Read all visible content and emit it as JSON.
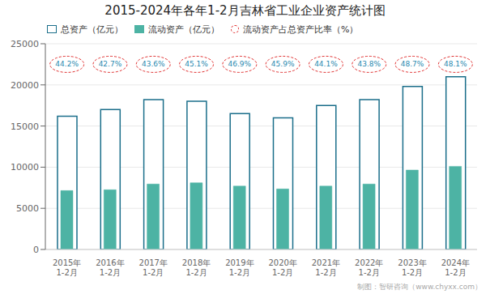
{
  "chart_data": {
    "type": "bar",
    "title": "2015-2024年各年1-2月吉林省工业企业资产统计图",
    "categories": [
      "2015年\n1-2月",
      "2016年\n1-2月",
      "2017年\n1-2月",
      "2018年\n1-2月",
      "2019年\n1-2月",
      "2020年\n1-2月",
      "2021年\n1-2月",
      "2022年\n1-2月",
      "2023年\n1-2月",
      "2024年\n1-2月"
    ],
    "series": [
      {
        "name": "总资产（亿元）",
        "type": "bar",
        "color": "#1a6e8a",
        "values": [
          16200,
          17000,
          18200,
          18000,
          16500,
          16000,
          17500,
          18200,
          19800,
          21000
        ]
      },
      {
        "name": "流动资产（亿元）",
        "type": "bar",
        "color": "#4db3a4",
        "values": [
          7150,
          7250,
          7950,
          8100,
          7700,
          7350,
          7700,
          7950,
          9650,
          10100
        ]
      },
      {
        "name": "流动资产占总资产比率（%）",
        "type": "text",
        "color": "#e03030",
        "marker": "circle",
        "values": [
          44.2,
          42.7,
          43.6,
          45.1,
          46.9,
          45.9,
          44.1,
          43.8,
          48.7,
          48.1
        ],
        "value_labels": [
          "44.2%",
          "42.7%",
          "43.6%",
          "45.1%",
          "46.9%",
          "45.9%",
          "44.1%",
          "43.8%",
          "48.7%",
          "48.1%"
        ]
      }
    ],
    "ylim": [
      0,
      25000
    ],
    "yticks": [
      0,
      5000,
      10000,
      15000,
      20000,
      25000
    ],
    "grid": true,
    "legend": "top-left",
    "annotations": [
      "制图：智研咨询（www.chyxx.com）"
    ]
  }
}
